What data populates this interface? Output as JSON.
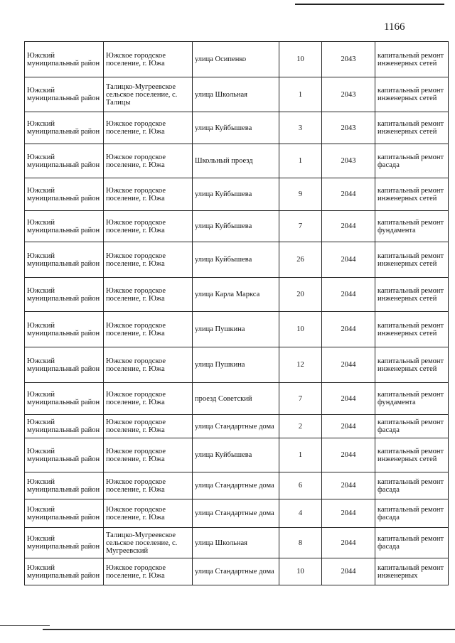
{
  "page_number": "1166",
  "rows": [
    [
      "Южский муниципальный район",
      "Южское городское поселение, г. Южа",
      "улица Осипенко",
      "10",
      "2043",
      "капитальный ремонт инженерных сетей"
    ],
    [
      "Южский муниципальный район",
      "Талицко-Мугреевское сельское поселение, с. Талицы",
      "улица Школьная",
      "1",
      "2043",
      "капитальный ремонт инженерных сетей"
    ],
    [
      "Южский муниципальный район",
      "Южское городское поселение, г. Южа",
      "улица Куйбышева",
      "3",
      "2043",
      "капитальный ремонт инженерных сетей"
    ],
    [
      "Южский муниципальный район",
      "Южское городское поселение, г. Южа",
      "Школьный проезд",
      "1",
      "2043",
      "капитальный ремонт фасада"
    ],
    [
      "Южский муниципальный район",
      "Южское городское поселение, г. Южа",
      "улица Куйбышева",
      "9",
      "2044",
      "капитальный ремонт инженерных сетей"
    ],
    [
      "Южский муниципальный район",
      "Южское городское поселение, г. Южа",
      "улица Куйбышева",
      "7",
      "2044",
      "капитальный ремонт фундамента"
    ],
    [
      "Южский муниципальный район",
      "Южское городское поселение, г. Южа",
      "улица Куйбышева",
      "26",
      "2044",
      "капитальный ремонт инженерных сетей"
    ],
    [
      "Южский муниципальный район",
      "Южское городское поселение, г. Южа",
      "улица Карла Маркса",
      "20",
      "2044",
      "капитальный ремонт инженерных сетей"
    ],
    [
      "Южский муниципальный район",
      "Южское городское поселение, г. Южа",
      "улица Пушкина",
      "10",
      "2044",
      "капитальный ремонт инженерных сетей"
    ],
    [
      "Южский муниципальный район",
      "Южское городское поселение, г. Южа",
      "улица Пушкина",
      "12",
      "2044",
      "капитальный ремонт инженерных сетей"
    ],
    [
      "Южский муниципальный район",
      "Южское городское поселение, г. Южа",
      "проезд Советский",
      "7",
      "2044",
      "капитальный ремонт фундамента"
    ],
    [
      "Южский муниципальный район",
      "Южское городское поселение, г. Южа",
      "улица Стандартные дома",
      "2",
      "2044",
      "капитальный ремонт фасада"
    ],
    [
      "Южский муниципальный район",
      "Южское городское поселение, г. Южа",
      "улица Куйбышева",
      "1",
      "2044",
      "капитальный ремонт инженерных сетей"
    ],
    [
      "Южский муниципальный район",
      "Южское городское поселение, г. Южа",
      "улица Стандартные дома",
      "6",
      "2044",
      "капитальный ремонт фасада"
    ],
    [
      "Южский муниципальный район",
      "Южское городское поселение, г. Южа",
      "улица Стандартные дома",
      "4",
      "2044",
      "капитальный ремонт фасада"
    ],
    [
      "Южский муниципальный район",
      "Талицко-Мугреевское сельское поселение, с. Мугреевский",
      "улица Школьная",
      "8",
      "2044",
      "капитальный ремонт фасада"
    ],
    [
      "Южский муниципальный район",
      "Южское городское поселение, г. Южа",
      "улица Стандартные дома",
      "10",
      "2044",
      "капитальный ремонт инженерных"
    ]
  ]
}
